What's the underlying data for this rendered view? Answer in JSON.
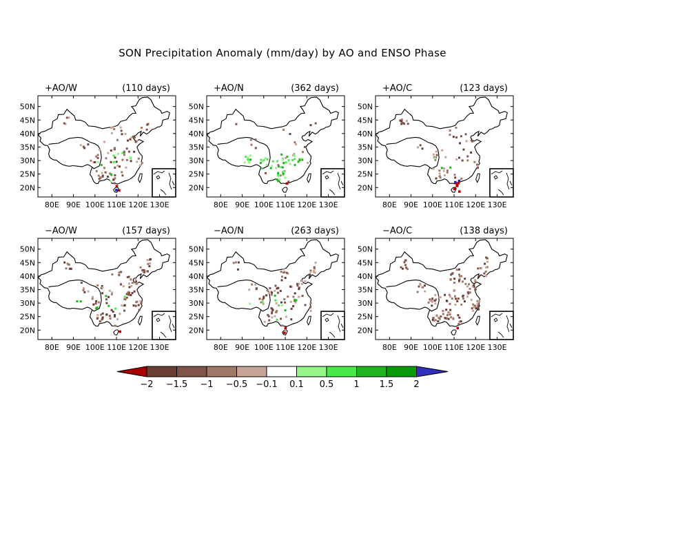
{
  "title": "SON Precipitation Anomaly (mm/day) by AO and ENSO Phase",
  "lat_labels": [
    "50N",
    "45N",
    "40N",
    "35N",
    "30N",
    "25N",
    "20N"
  ],
  "lon_labels": [
    "80E",
    "90E",
    "100E",
    "110E",
    "120E",
    "130E"
  ],
  "panels": [
    {
      "phase": "+AO/W",
      "days": "(110 days)",
      "dry": 85,
      "wet": 10,
      "extreme": 3,
      "dominant": "dry"
    },
    {
      "phase": "+AO/N",
      "days": "(362 days)",
      "dry": 25,
      "wet": 55,
      "extreme": 1,
      "dominant": "wet"
    },
    {
      "phase": "+AO/C",
      "days": "(123 days)",
      "dry": 60,
      "wet": 3,
      "extreme": 8,
      "dominant": "dry"
    },
    {
      "phase": "−AO/W",
      "days": "(157 days)",
      "dry": 110,
      "wet": 8,
      "extreme": 1,
      "dominant": "dry"
    },
    {
      "phase": "−AO/N",
      "days": "(263 days)",
      "dry": 100,
      "wet": 10,
      "extreme": 2,
      "dominant": "dry"
    },
    {
      "phase": "−AO/C",
      "days": "(138 days)",
      "dry": 150,
      "wet": 0,
      "extreme": 1,
      "dominant": "dry"
    }
  ],
  "colorbar": {
    "labels": [
      "−2",
      "−1.5",
      "−1",
      "−0.5",
      "−0.1",
      "0.1",
      "0.5",
      "1",
      "1.5",
      "2"
    ],
    "colors": [
      "#a80000",
      "#6b3e35",
      "#805448",
      "#a07868",
      "#c8a498",
      "#ffffff",
      "#96f58a",
      "#4ae84a",
      "#20b420",
      "#0a9a0a",
      "#3030c0"
    ]
  },
  "colors": {
    "dry_dots": [
      "#6b3e35",
      "#805448",
      "#a07868",
      "#c8a498"
    ],
    "wet_dots": [
      "#96f58a",
      "#4ae84a",
      "#20b420"
    ],
    "extreme_dry": "#c00000",
    "extreme_wet": "#2020d0"
  }
}
